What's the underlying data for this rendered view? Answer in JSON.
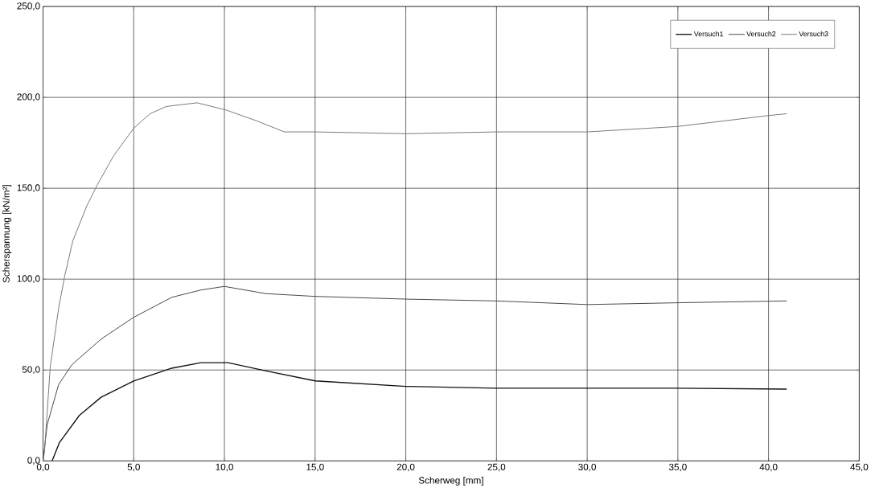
{
  "chart_data": {
    "type": "line",
    "xlabel": "Scherweg [mm]",
    "ylabel": "Scherspannung [kN/m²]",
    "xlim": [
      0,
      45
    ],
    "ylim": [
      0,
      250
    ],
    "xticks": [
      {
        "value": 0,
        "label": "0,0"
      },
      {
        "value": 5,
        "label": "5,0"
      },
      {
        "value": 10,
        "label": "10,0"
      },
      {
        "value": 15,
        "label": "15,0"
      },
      {
        "value": 20,
        "label": "20,0"
      },
      {
        "value": 25,
        "label": "25,0"
      },
      {
        "value": 30,
        "label": "30,0"
      },
      {
        "value": 35,
        "label": "35,0"
      },
      {
        "value": 40,
        "label": "40,0"
      },
      {
        "value": 45,
        "label": "45,0"
      }
    ],
    "yticks": [
      {
        "value": 0,
        "label": "0,0"
      },
      {
        "value": 50,
        "label": "50,0"
      },
      {
        "value": 100,
        "label": "100,0"
      },
      {
        "value": 150,
        "label": "150,0"
      },
      {
        "value": 200,
        "label": "200,0"
      },
      {
        "value": 250,
        "label": "250,0"
      }
    ],
    "grid": true,
    "legend": "top right",
    "marker": "none",
    "line_style": "solid",
    "series": [
      {
        "name": "Versuch1",
        "color": "#111111",
        "x": [
          0.5,
          0.9,
          2,
          3.2,
          5,
          7.1,
          8.7,
          10.2,
          12.3,
          15,
          20,
          25,
          30,
          35,
          41
        ],
        "values": [
          0,
          10,
          25,
          35,
          44,
          51,
          54,
          54,
          49.5,
          44,
          41,
          40,
          40,
          40,
          39.5
        ]
      },
      {
        "name": "Versuch2",
        "color": "#444444",
        "x": [
          0,
          0.23,
          0.86,
          1.6,
          3.2,
          5,
          7.1,
          8.7,
          10,
          12.3,
          15,
          20,
          25,
          30,
          35,
          41
        ],
        "values": [
          0,
          20,
          42,
          53,
          67,
          79,
          90,
          94,
          96,
          92,
          90.5,
          89,
          88,
          86,
          87,
          88
        ]
      },
      {
        "name": "Versuch3",
        "color": "#777777",
        "x": [
          0,
          0.08,
          0.4,
          0.86,
          1.2,
          1.64,
          2.4,
          3,
          3.9,
          5,
          5.9,
          6.8,
          8.5,
          10.1,
          11.8,
          13.3,
          15,
          20,
          25,
          30,
          35,
          40,
          41
        ],
        "values": [
          0,
          5,
          52,
          84,
          102,
          121,
          140,
          152,
          168,
          183,
          191,
          195,
          197,
          193,
          187,
          181,
          181,
          180,
          181,
          181,
          184,
          190,
          191
        ]
      }
    ]
  }
}
